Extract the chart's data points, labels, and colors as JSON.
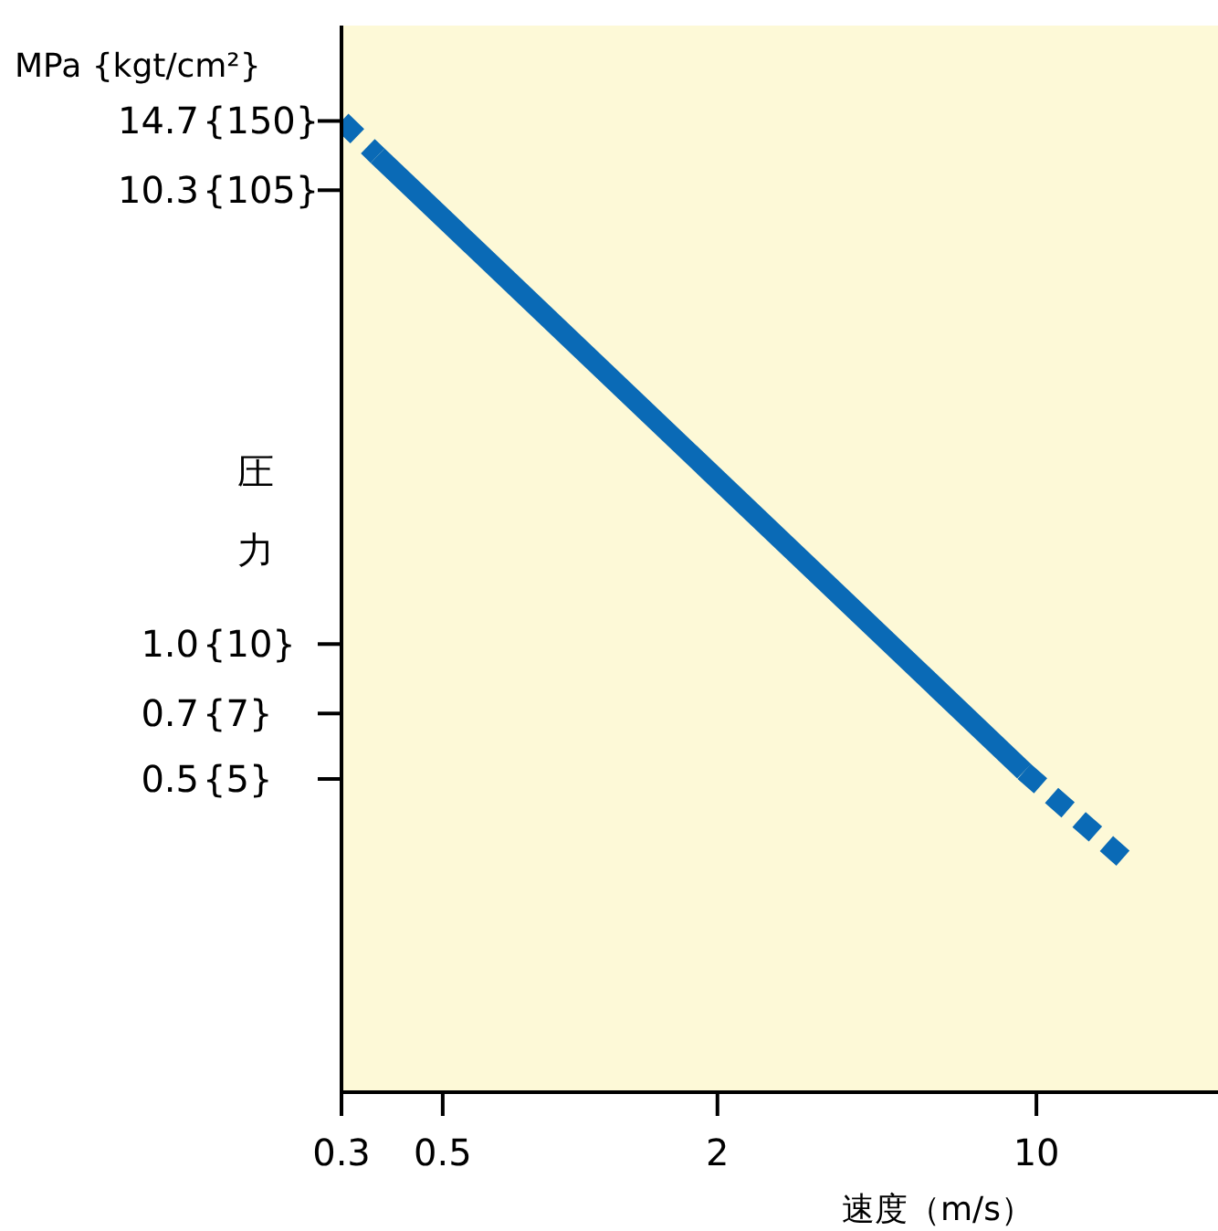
{
  "chart_data": {
    "type": "line",
    "ylabel": "圧力",
    "xlabel": "速度（m/s）",
    "annotations": [
      "MPa {kgt/cm²}",
      "{150}",
      "{105}",
      "{10}",
      "{7}",
      "{5}"
    ],
    "log": "xy",
    "xlim": [
      0.3,
      25
    ],
    "ylim": [
      0.1,
      24
    ],
    "xticks": [
      0.3,
      0.5,
      2,
      10
    ],
    "yticks": [
      14.7,
      10.3,
      {
        "value": 1,
        "label": "1.0"
      },
      0.7,
      0.5
    ],
    "grid": false,
    "marker": "none",
    "series": [
      {
        "color": "#0a6ab6",
        "line_style": "dashed",
        "x": [
          0.3,
          0.36
        ],
        "values": [
          14.7,
          12.3
        ]
      },
      {
        "color": "#0a6ab6",
        "line_style": "solid",
        "x": [
          0.36,
          9.4
        ],
        "values": [
          12.3,
          0.52
        ]
      },
      {
        "color": "#0a6ab6",
        "line_style": "dashed",
        "x": [
          9.4,
          15.9
        ],
        "values": [
          0.52,
          0.325
        ]
      }
    ]
  }
}
